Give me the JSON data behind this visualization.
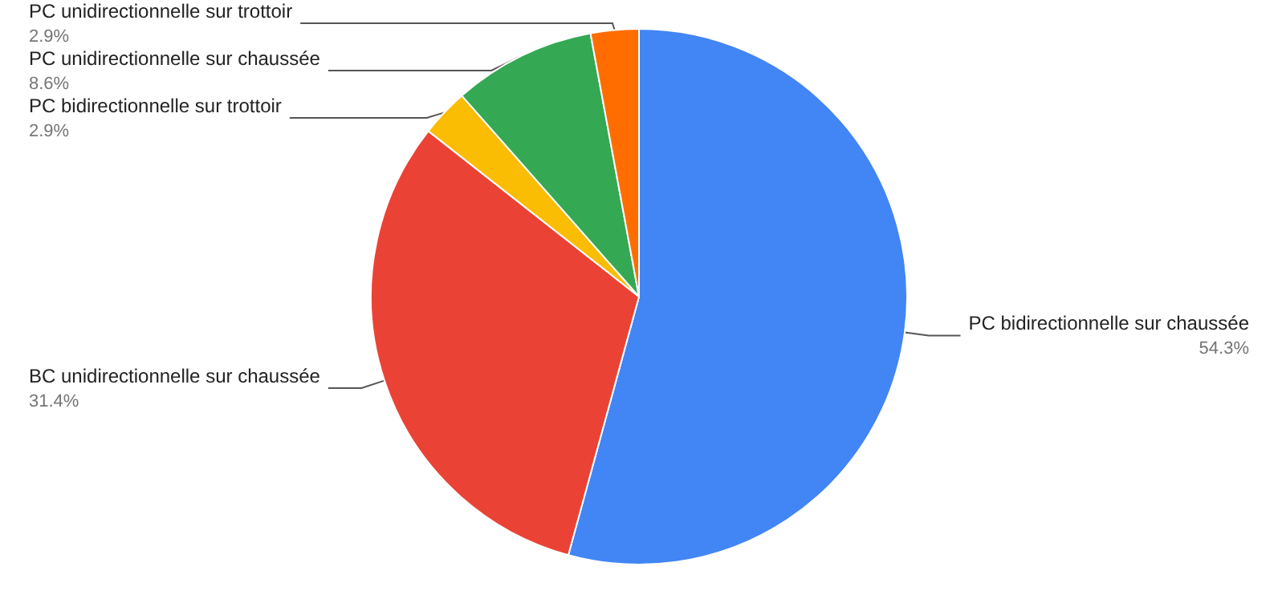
{
  "chart_data": {
    "type": "pie",
    "categories": [
      "PC bidirectionnelle sur chaussée",
      "BC unidirectionnelle sur chaussée",
      "PC bidirectionnelle sur trottoir",
      "PC unidirectionnelle sur chaussée",
      "PC unidirectionnelle sur trottoir"
    ],
    "values": [
      54.3,
      31.4,
      2.9,
      8.6,
      2.9
    ],
    "value_labels": [
      "54.3%",
      "31.4%",
      "2.9%",
      "8.6%",
      "2.9%"
    ],
    "colors": [
      "#4285f4",
      "#ea4335",
      "#fbbc04",
      "#34a853",
      "#ff6d01"
    ],
    "legend": false
  }
}
